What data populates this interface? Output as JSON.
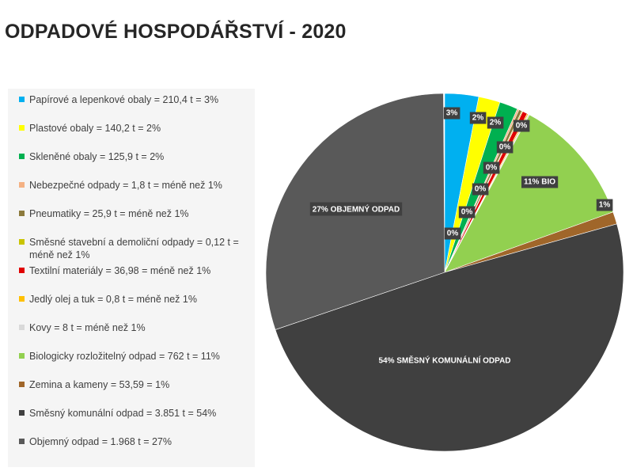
{
  "title": "ODPADOVÉ HOSPODÁŘSTVÍ - 2020",
  "chart_data": {
    "type": "pie",
    "title": "ODPADOVÉ HOSPODÁŘSTVÍ - 2020",
    "legend_position": "left",
    "slices": [
      {
        "legend": "Papírové a lepenkové obaly  = 210,4 t = 3%",
        "value": 210.4,
        "percent": 3,
        "label": "3%",
        "color": "#00b0f0"
      },
      {
        "legend": "Plastové obaly = 140,2 t = 2%",
        "value": 140.2,
        "percent": 2,
        "label": "2%",
        "color": "#ffff00"
      },
      {
        "legend": "Skleněné obaly = 125,9 t = 2%",
        "value": 125.9,
        "percent": 2,
        "label": "2%",
        "color": "#00b050"
      },
      {
        "legend": "Nebezpečné odpady = 1,8 t = méně než 1%",
        "value": 1.8,
        "percent": 0,
        "label": "0%",
        "color": "#f4b183"
      },
      {
        "legend": "Pneumatiky = 25,9 t =   méně než 1%",
        "value": 25.9,
        "percent": 0,
        "label": "0%",
        "color": "#8c7a3c"
      },
      {
        "legend": "Směsné stavební a demoliční odpady = 0,12 t = méně než 1%",
        "value": 0.12,
        "percent": 0,
        "label": "0%",
        "color": "#c9c400"
      },
      {
        "legend": "Textilní materiály = 36,98 = méně než 1%",
        "value": 36.98,
        "percent": 0,
        "label": "0%",
        "color": "#e00000"
      },
      {
        "legend": "Jedlý olej a tuk = 0,8 t = méně než 1%",
        "value": 0.8,
        "percent": 0,
        "label": "0%",
        "color": "#ffc000"
      },
      {
        "legend": "Kovy = 8 t = méně než 1%",
        "value": 8,
        "percent": 0,
        "label": "0%",
        "color": "#d9d9d9"
      },
      {
        "legend": "Biologicky rozložitelný odpad = 762 t = 11%",
        "value": 762,
        "percent": 11,
        "label": "11% BIO",
        "color": "#92d050"
      },
      {
        "legend": "Zemina a kameny = 53,59 = 1%",
        "value": 53.59,
        "percent": 1,
        "label": "1%",
        "color": "#a0662a"
      },
      {
        "legend": "Směsný komunální odpad = 3.851 t = 54%",
        "value": 3851,
        "percent": 54,
        "label": "54% SMĚSNÝ KOMUNÁLNÍ ODPAD",
        "color": "#404040"
      },
      {
        "legend": "Objemný odpad = 1.968 t = 27%",
        "value": 1968,
        "percent": 27,
        "label": "27% OBJEMNÝ ODPAD",
        "color": "#595959"
      }
    ]
  }
}
